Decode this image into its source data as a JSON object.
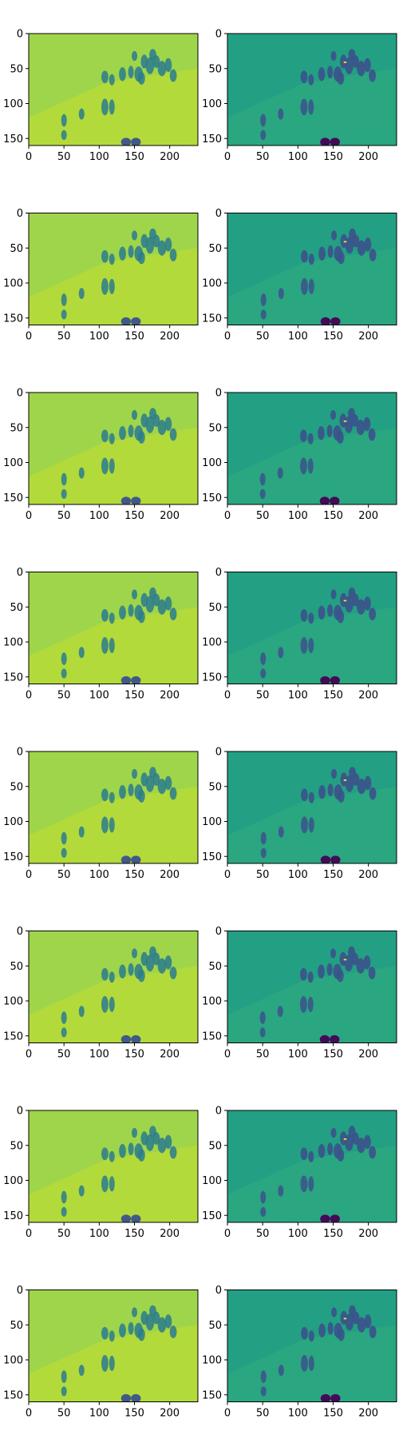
{
  "chart_data": {
    "type": "heatmap",
    "grid": {
      "rows": 8,
      "cols": 2
    },
    "image_shape": [
      160,
      240
    ],
    "colormap": "viridis",
    "colors": {
      "left_base": "#9fd54a",
      "left_bright": "#c2df30",
      "left_figure": "#2a7b8e",
      "left_figure_dark": "#3b528b",
      "right_base": "#23a083",
      "right_light": "#3fb97a",
      "right_figure": "#3b528b",
      "right_figure_dark": "#440154",
      "right_highlight": "#fde725"
    },
    "panels": [
      {
        "row": 1,
        "col": 1,
        "xlim": [
          0,
          240
        ],
        "ylim": [
          160,
          0
        ],
        "xticks": [
          "0",
          "50",
          "100",
          "150",
          "200"
        ],
        "yticks": [
          "0",
          "50",
          "100",
          "150"
        ]
      },
      {
        "row": 1,
        "col": 2,
        "xlim": [
          0,
          240
        ],
        "ylim": [
          160,
          0
        ],
        "xticks": [
          "0",
          "50",
          "100",
          "150",
          "200"
        ],
        "yticks": [
          "0",
          "50",
          "100",
          "150"
        ]
      },
      {
        "row": 2,
        "col": 1,
        "xlim": [
          0,
          240
        ],
        "ylim": [
          160,
          0
        ],
        "xticks": [
          "0",
          "50",
          "100",
          "150",
          "200"
        ],
        "yticks": [
          "0",
          "50",
          "100",
          "150"
        ]
      },
      {
        "row": 2,
        "col": 2,
        "xlim": [
          0,
          240
        ],
        "ylim": [
          160,
          0
        ],
        "xticks": [
          "0",
          "50",
          "100",
          "150",
          "200"
        ],
        "yticks": [
          "0",
          "50",
          "100",
          "150"
        ]
      },
      {
        "row": 3,
        "col": 1,
        "xlim": [
          0,
          240
        ],
        "ylim": [
          160,
          0
        ],
        "xticks": [
          "0",
          "50",
          "100",
          "150",
          "200"
        ],
        "yticks": [
          "0",
          "50",
          "100",
          "150"
        ]
      },
      {
        "row": 3,
        "col": 2,
        "xlim": [
          0,
          240
        ],
        "ylim": [
          160,
          0
        ],
        "xticks": [
          "0",
          "50",
          "100",
          "150",
          "200"
        ],
        "yticks": [
          "0",
          "50",
          "100",
          "150"
        ]
      },
      {
        "row": 4,
        "col": 1,
        "xlim": [
          0,
          240
        ],
        "ylim": [
          160,
          0
        ],
        "xticks": [
          "0",
          "50",
          "100",
          "150",
          "200"
        ],
        "yticks": [
          "0",
          "50",
          "100",
          "150"
        ]
      },
      {
        "row": 4,
        "col": 2,
        "xlim": [
          0,
          240
        ],
        "ylim": [
          160,
          0
        ],
        "xticks": [
          "0",
          "50",
          "100",
          "150",
          "200"
        ],
        "yticks": [
          "0",
          "50",
          "100",
          "150"
        ]
      },
      {
        "row": 5,
        "col": 1,
        "xlim": [
          0,
          240
        ],
        "ylim": [
          160,
          0
        ],
        "xticks": [
          "0",
          "50",
          "100",
          "150",
          "200"
        ],
        "yticks": [
          "0",
          "50",
          "100",
          "150"
        ]
      },
      {
        "row": 5,
        "col": 2,
        "xlim": [
          0,
          240
        ],
        "ylim": [
          160,
          0
        ],
        "xticks": [
          "0",
          "50",
          "100",
          "150",
          "200"
        ],
        "yticks": [
          "0",
          "50",
          "100",
          "150"
        ]
      },
      {
        "row": 6,
        "col": 1,
        "xlim": [
          0,
          240
        ],
        "ylim": [
          160,
          0
        ],
        "xticks": [
          "0",
          "50",
          "100",
          "150",
          "200"
        ],
        "yticks": [
          "0",
          "50",
          "100",
          "150"
        ]
      },
      {
        "row": 6,
        "col": 2,
        "xlim": [
          0,
          240
        ],
        "ylim": [
          160,
          0
        ],
        "xticks": [
          "0",
          "50",
          "100",
          "150",
          "200"
        ],
        "yticks": [
          "0",
          "50",
          "100",
          "150"
        ]
      },
      {
        "row": 7,
        "col": 1,
        "xlim": [
          0,
          240
        ],
        "ylim": [
          160,
          0
        ],
        "xticks": [
          "0",
          "50",
          "100",
          "150",
          "200"
        ],
        "yticks": [
          "0",
          "50",
          "100",
          "150"
        ]
      },
      {
        "row": 7,
        "col": 2,
        "xlim": [
          0,
          240
        ],
        "ylim": [
          160,
          0
        ],
        "xticks": [
          "0",
          "50",
          "100",
          "150",
          "200"
        ],
        "yticks": [
          "0",
          "50",
          "100",
          "150"
        ]
      },
      {
        "row": 8,
        "col": 1,
        "xlim": [
          0,
          240
        ],
        "ylim": [
          160,
          0
        ],
        "xticks": [
          "0",
          "50",
          "100",
          "150",
          "200"
        ],
        "yticks": [
          "0",
          "50",
          "100",
          "150"
        ]
      },
      {
        "row": 8,
        "col": 2,
        "xlim": [
          0,
          240
        ],
        "ylim": [
          160,
          0
        ],
        "xticks": [
          "0",
          "50",
          "100",
          "150",
          "200"
        ],
        "yticks": [
          "0",
          "50",
          "100",
          "150"
        ]
      }
    ]
  }
}
